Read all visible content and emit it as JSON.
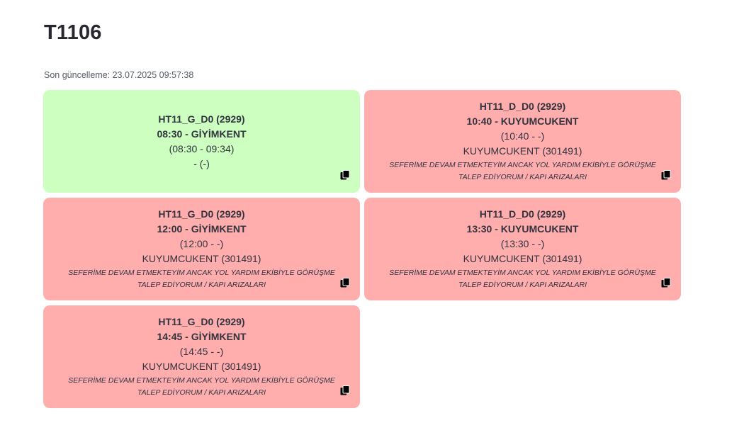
{
  "page": {
    "title": "T1106",
    "last_update": "Son güncelleme: 23.07.2025 09:57:38"
  },
  "colors": {
    "ok_bg": "#ccffc0",
    "fail_bg": "#ffadad"
  },
  "cards": [
    {
      "status": "ok",
      "line": "HT11_G_D0 (2929)",
      "trip": "08:30 - GİYİMKENT",
      "times": "(08:30 - 09:34)",
      "stop": "- (-)",
      "note": "",
      "icon": "copy-icon"
    },
    {
      "status": "fail",
      "line": "HT11_D_D0 (2929)",
      "trip": "10:40 - KUYUMCUKENT",
      "times": "(10:40 - -)",
      "stop": "KUYUMCUKENT (301491)",
      "note": "SEFERİME DEVAM ETMEKTEYİM ANCAK YOL YARDIM EKİBİYLE GÖRÜŞME TALEP EDİYORUM / KAPI ARIZALARI",
      "icon": "copy-icon"
    },
    {
      "status": "fail",
      "line": "HT11_G_D0 (2929)",
      "trip": "12:00 - GİYİMKENT",
      "times": "(12:00 - -)",
      "stop": "KUYUMCUKENT (301491)",
      "note": "SEFERİME DEVAM ETMEKTEYİM ANCAK YOL YARDIM EKİBİYLE GÖRÜŞME TALEP EDİYORUM / KAPI ARIZALARI",
      "icon": "copy-icon"
    },
    {
      "status": "fail",
      "line": "HT11_D_D0 (2929)",
      "trip": "13:30 - KUYUMCUKENT",
      "times": "(13:30 - -)",
      "stop": "KUYUMCUKENT (301491)",
      "note": "SEFERİME DEVAM ETMEKTEYİM ANCAK YOL YARDIM EKİBİYLE GÖRÜŞME TALEP EDİYORUM / KAPI ARIZALARI",
      "icon": "copy-icon"
    },
    {
      "status": "fail",
      "line": "HT11_G_D0 (2929)",
      "trip": "14:45 - GİYİMKENT",
      "times": "(14:45 - -)",
      "stop": "KUYUMCUKENT (301491)",
      "note": "SEFERİME DEVAM ETMEKTEYİM ANCAK YOL YARDIM EKİBİYLE GÖRÜŞME TALEP EDİYORUM / KAPI ARIZALARI",
      "icon": "copy-icon"
    }
  ]
}
